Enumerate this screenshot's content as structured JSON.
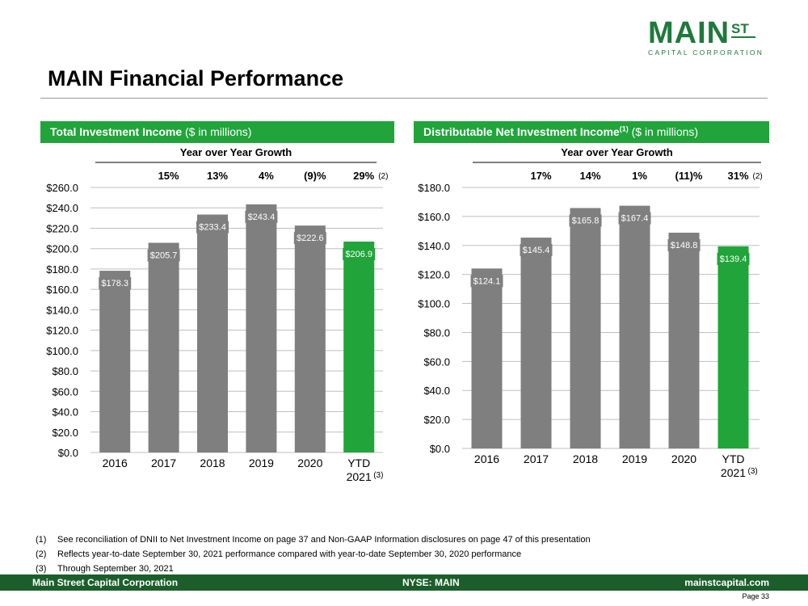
{
  "logo": {
    "main": "MAIN",
    "st": "ST",
    "sub": "CAPITAL CORPORATION"
  },
  "title": "MAIN Financial Performance",
  "colors": {
    "bar_gray": "#7f7f7f",
    "bar_green": "#21a43a",
    "header_green": "#21a43a",
    "footer_green": "#1b5e2a",
    "brand_green": "#1e7a3c"
  },
  "panels": [
    {
      "title_bold": "Total Investment Income",
      "title_rest": " ($ in millions)"
    },
    {
      "title_bold": "Distributable Net Investment Income",
      "title_sup": "(1)",
      "title_rest": " ($ in millions)"
    }
  ],
  "chart_data": [
    {
      "type": "bar",
      "title": "Total Investment Income ($ in millions)",
      "categories": [
        "2016",
        "2017",
        "2018",
        "2019",
        "2020",
        "YTD 2021"
      ],
      "category_lines": [
        [
          "2016"
        ],
        [
          "2017"
        ],
        [
          "2018"
        ],
        [
          "2019"
        ],
        [
          "2020"
        ],
        [
          "YTD",
          "2021"
        ]
      ],
      "category_notes": [
        "",
        "",
        "",
        "",
        "",
        "(3)"
      ],
      "values": [
        178.3,
        205.7,
        233.4,
        243.4,
        222.6,
        206.9
      ],
      "value_labels": [
        "$178.3",
        "$205.7",
        "$233.4",
        "$243.4",
        "$222.6",
        "$206.9"
      ],
      "highlight_index": 5,
      "ylim": [
        0,
        260
      ],
      "yticks": [
        0,
        20,
        40,
        60,
        80,
        100,
        120,
        140,
        160,
        180,
        200,
        220,
        240,
        260
      ],
      "ytick_labels": [
        "$0.0",
        "$20.0",
        "$40.0",
        "$60.0",
        "$80.0",
        "$100.0",
        "$120.0",
        "$140.0",
        "$160.0",
        "$180.0",
        "$200.0",
        "$220.0",
        "$240.0",
        "$260.0"
      ],
      "grid": true,
      "growth_title": "Year over Year Growth",
      "growth": [
        "",
        "15%",
        "13%",
        "4%",
        "(9)%",
        "29%"
      ],
      "growth_notes": [
        "",
        "",
        "",
        "",
        "",
        "(2)"
      ]
    },
    {
      "type": "bar",
      "title": "Distributable Net Investment Income(1) ($ in millions)",
      "categories": [
        "2016",
        "2017",
        "2018",
        "2019",
        "2020",
        "YTD 2021"
      ],
      "category_lines": [
        [
          "2016"
        ],
        [
          "2017"
        ],
        [
          "2018"
        ],
        [
          "2019"
        ],
        [
          "2020"
        ],
        [
          "YTD",
          "2021"
        ]
      ],
      "category_notes": [
        "",
        "",
        "",
        "",
        "",
        "(3)"
      ],
      "values": [
        124.1,
        145.4,
        165.8,
        167.4,
        148.8,
        139.4
      ],
      "value_labels": [
        "$124.1",
        "$145.4",
        "$165.8",
        "$167.4",
        "$148.8",
        "$139.4"
      ],
      "highlight_index": 5,
      "ylim": [
        0,
        180
      ],
      "yticks": [
        0,
        20,
        40,
        60,
        80,
        100,
        120,
        140,
        160,
        180
      ],
      "ytick_labels": [
        "$0.0",
        "$20.0",
        "$40.0",
        "$60.0",
        "$80.0",
        "$100.0",
        "$120.0",
        "$140.0",
        "$160.0",
        "$180.0"
      ],
      "grid": true,
      "growth_title": "Year over Year Growth",
      "growth": [
        "",
        "17%",
        "14%",
        "1%",
        "(11)%",
        "31%"
      ],
      "growth_notes": [
        "",
        "",
        "",
        "",
        "",
        "(2)"
      ]
    }
  ],
  "footnotes": [
    {
      "num": "(1)",
      "text": "See reconciliation of DNII to Net Investment Income on page 37 and Non-GAAP Information disclosures on page 47 of this presentation"
    },
    {
      "num": "(2)",
      "text": "Reflects year-to-date September 30, 2021 performance compared with year-to-date September 30, 2020 performance"
    },
    {
      "num": "(3)",
      "text": "Through September 30, 2021"
    }
  ],
  "footer": {
    "left": "Main Street Capital Corporation",
    "middle": "NYSE: MAIN",
    "right": "mainstcapital.com"
  },
  "page": "Page  33"
}
